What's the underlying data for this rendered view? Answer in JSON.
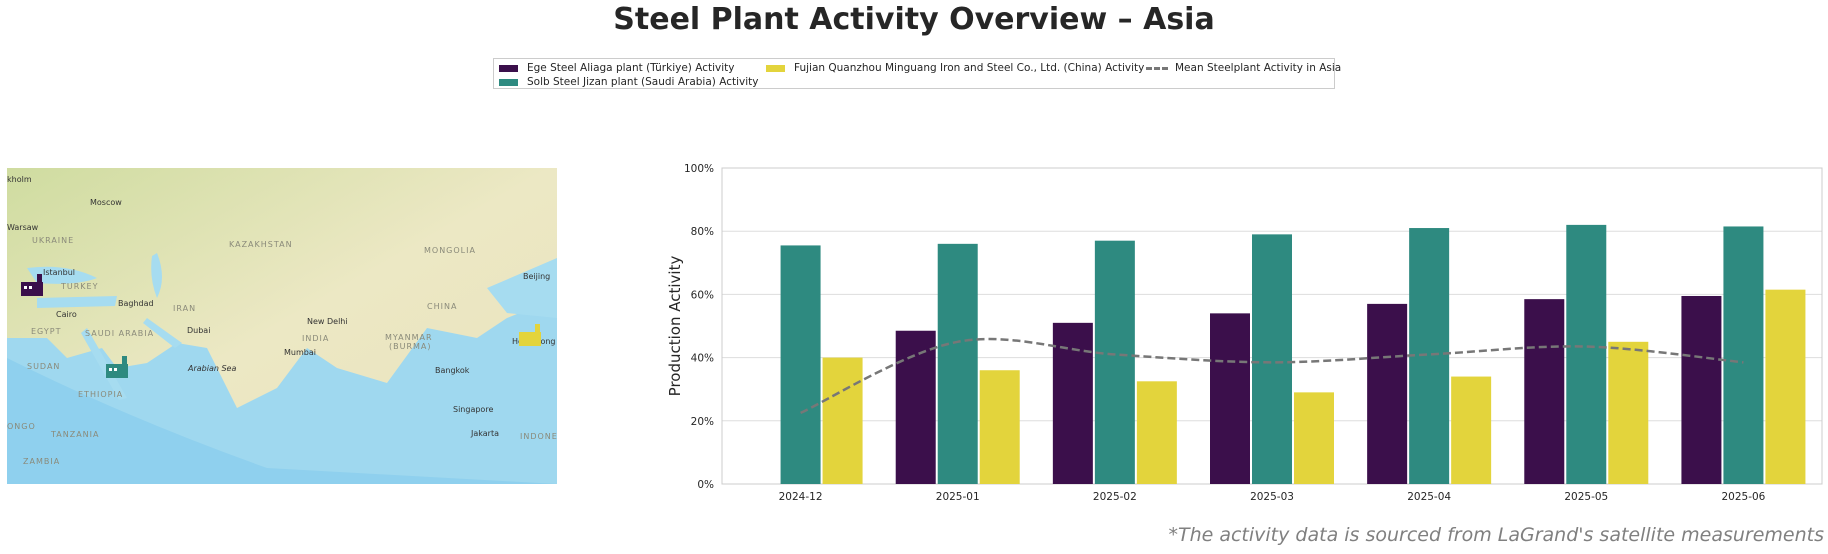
{
  "title": "Steel Plant Activity Overview – Asia",
  "source_note": "*The activity data is sourced from LaGrand's satellite measurements",
  "map": {
    "labels": [
      "kholm",
      "Moscow",
      "Warsaw",
      "UKRAINE",
      "KAZAKHSTAN",
      "MONGOLIA",
      "Istanbul",
      "TURKEY",
      "Beijing",
      "Baghdad",
      "IRAN",
      "CHINA",
      "Cairo",
      "New Delhi",
      "EGYPT",
      "Dubai",
      "INDIA",
      "MYANMAR",
      "(BURMA)",
      "Hong Kong",
      "SAUDI ARABIA",
      "Mumbai",
      "SUDAN",
      "Arabian Sea",
      "Bangkok",
      "ETHIOPIA",
      "Singapore",
      "ONGO",
      "TANZANIA",
      "Jakarta",
      "INDONE",
      "ZAMBIA"
    ],
    "markers": [
      {
        "name": "Ege Steel Aliaga plant (Türkiye)",
        "color": "#3b0f4b",
        "icon": "factory-icon"
      },
      {
        "name": "Solb Steel Jizan plant (Saudi Arabia)",
        "color": "#2e8a80",
        "icon": "factory-icon"
      },
      {
        "name": "Fujian Quanzhou Minguang Iron and Steel Co., Ltd. (China)",
        "color": "#e3d43c",
        "icon": "factory-icon"
      }
    ]
  },
  "chart_data": {
    "type": "bar",
    "title": "",
    "xlabel": "",
    "ylabel": "Production Activity",
    "ylim": [
      0,
      100
    ],
    "yticks": [
      "0%",
      "20%",
      "40%",
      "60%",
      "80%",
      "100%"
    ],
    "grid": true,
    "legend_position": "top-center",
    "categories": [
      "2024-12",
      "2025-01",
      "2025-02",
      "2025-03",
      "2025-04",
      "2025-05",
      "2025-06"
    ],
    "series": [
      {
        "name": "Ege Steel Aliaga plant (Türkiye) Activity",
        "color": "#3b0f4b",
        "type": "bar",
        "values": [
          null,
          48.5,
          51,
          54,
          57,
          58.5,
          59.5
        ]
      },
      {
        "name": "Solb Steel Jizan plant (Saudi Arabia) Activity",
        "color": "#2e8a80",
        "type": "bar",
        "values": [
          75.5,
          76,
          77,
          79,
          81,
          82,
          81.5
        ]
      },
      {
        "name": "Fujian Quanzhou Minguang Iron and Steel Co., Ltd. (China) Activity",
        "color": "#e3d43c",
        "type": "bar",
        "values": [
          40,
          36,
          32.5,
          29,
          34,
          45,
          61.5
        ]
      },
      {
        "name": "Mean Steelplant Activity in Asia",
        "color": "#777777",
        "type": "line",
        "style": "dashed",
        "values": [
          22.5,
          45,
          41,
          38.5,
          41,
          43.5,
          38.5
        ]
      }
    ]
  }
}
